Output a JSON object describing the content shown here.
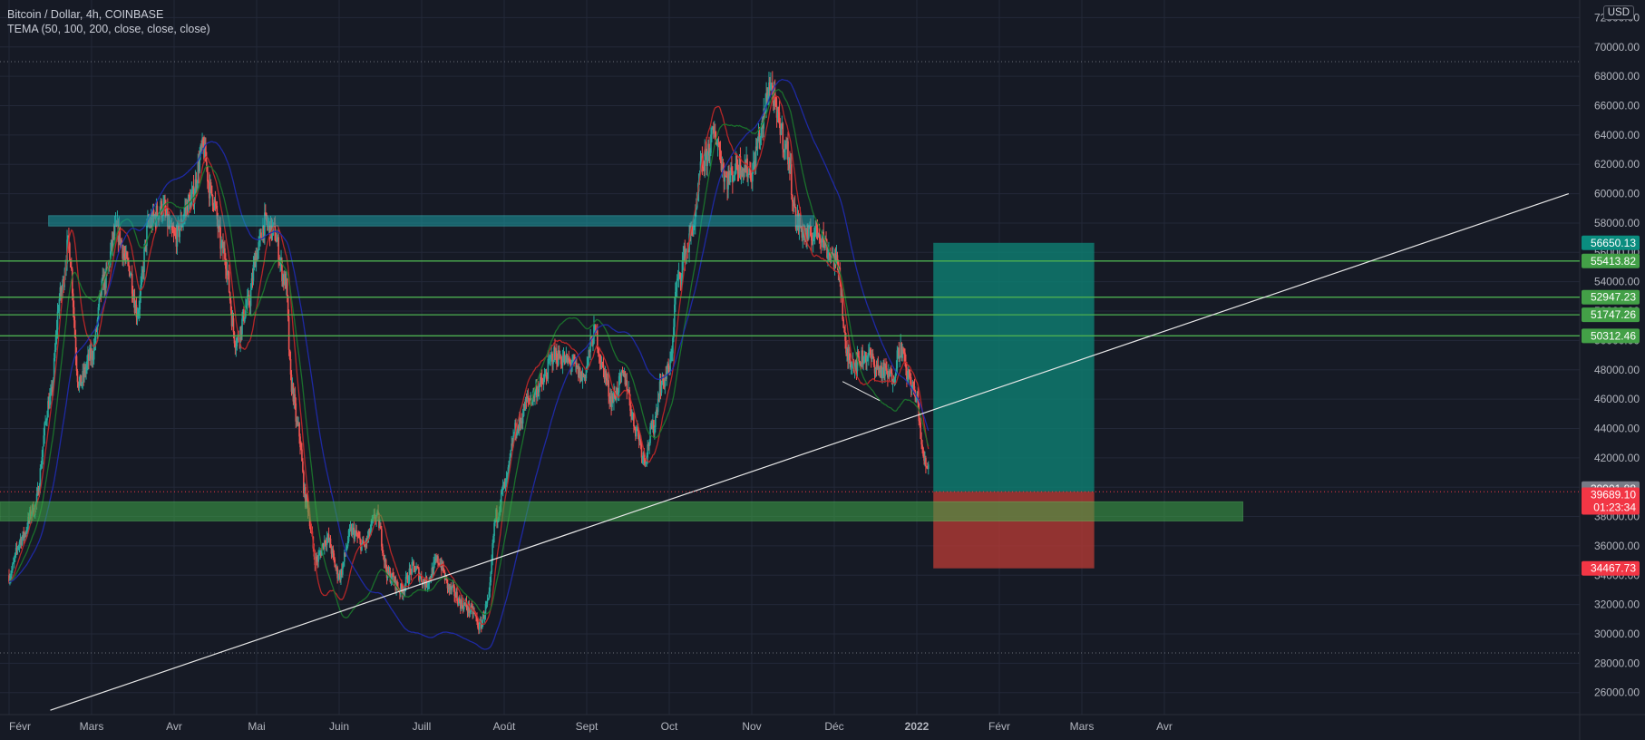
{
  "header": {
    "symbol_line": "Bitcoin / Dollar, 4h, COINBASE",
    "indicator_line": "TEMA (50, 100, 200, close, close, close)"
  },
  "currency_label": "USD",
  "colors": {
    "background": "#161a25",
    "grid": "#232838",
    "up_candle": "#26a69a",
    "down_candle": "#ef5350",
    "tema_50": "#c62828",
    "tema_100": "#1b7a2c",
    "tema_200": "#1f2bb0",
    "level_line": "#4caf50",
    "level_label": "#43a047",
    "target_zone": "#0e7a6f",
    "stop_zone": "#b23a34",
    "resistance_box": "#1aa0a6",
    "support_box": "#3fa84a",
    "trendline": "#e8e8e8",
    "price_label_gray": "#787b86",
    "price_label_red": "#f23645"
  },
  "chart_data": {
    "type": "candlestick",
    "title": "Bitcoin / Dollar, 4h, COINBASE",
    "ylim": [
      24500,
      73200
    ],
    "y_ticks": [
      26000,
      28000,
      30000,
      32000,
      34000,
      36000,
      38000,
      40000,
      42000,
      44000,
      46000,
      48000,
      50000,
      52000,
      54000,
      56000,
      58000,
      60000,
      62000,
      64000,
      66000,
      68000,
      70000,
      72000
    ],
    "y_tick_labels": [
      "26000.00",
      "28000.00",
      "30000.00",
      "32000.00",
      "34000.00",
      "36000.00",
      "38000.00",
      "40000.00",
      "42000.00",
      "44000.00",
      "46000.00",
      "48000.00",
      "50000.00",
      "52000.00",
      "54000.00",
      "56000.00",
      "58000.00",
      "60000.00",
      "62000.00",
      "64000.00",
      "66000.00",
      "68000.00",
      "70000.00",
      "72000.00"
    ],
    "x_month_labels": [
      "Févr",
      "Mars",
      "Avr",
      "Mai",
      "Juin",
      "Juill",
      "Août",
      "Sept",
      "Oct",
      "Nov",
      "Déc",
      "2022",
      "Févr",
      "Mars",
      "Avr"
    ],
    "x_month_index": [
      0,
      1,
      2,
      3,
      4,
      5,
      6,
      7,
      8,
      9,
      10,
      11,
      12,
      13,
      14
    ],
    "price_path": [
      [
        0.0,
        34000
      ],
      [
        0.15,
        36500
      ],
      [
        0.3,
        38500
      ],
      [
        0.5,
        46000
      ],
      [
        0.62,
        53000
      ],
      [
        0.72,
        56500
      ],
      [
        0.85,
        47000
      ],
      [
        1.0,
        49000
      ],
      [
        1.15,
        54000
      ],
      [
        1.3,
        57500
      ],
      [
        1.45,
        55000
      ],
      [
        1.55,
        52000
      ],
      [
        1.7,
        58000
      ],
      [
        1.85,
        59000
      ],
      [
        2.0,
        57000
      ],
      [
        2.2,
        59500
      ],
      [
        2.35,
        63000
      ],
      [
        2.45,
        60000
      ],
      [
        2.6,
        56000
      ],
      [
        2.75,
        50000
      ],
      [
        2.9,
        52500
      ],
      [
        3.0,
        56000
      ],
      [
        3.1,
        58000
      ],
      [
        3.2,
        57500
      ],
      [
        3.35,
        54000
      ],
      [
        3.42,
        47000
      ],
      [
        3.5,
        44000
      ],
      [
        3.6,
        39000
      ],
      [
        3.72,
        35000
      ],
      [
        3.85,
        36500
      ],
      [
        4.0,
        34000
      ],
      [
        4.15,
        37000
      ],
      [
        4.3,
        36000
      ],
      [
        4.45,
        38000
      ],
      [
        4.6,
        34000
      ],
      [
        4.75,
        33000
      ],
      [
        4.9,
        34500
      ],
      [
        5.05,
        33500
      ],
      [
        5.2,
        35000
      ],
      [
        5.35,
        33000
      ],
      [
        5.5,
        32000
      ],
      [
        5.62,
        31500
      ],
      [
        5.7,
        30500
      ],
      [
        5.8,
        32000
      ],
      [
        5.9,
        38000
      ],
      [
        6.0,
        40000
      ],
      [
        6.15,
        44000
      ],
      [
        6.3,
        46000
      ],
      [
        6.45,
        47000
      ],
      [
        6.6,
        49000
      ],
      [
        6.8,
        48500
      ],
      [
        6.95,
        47500
      ],
      [
        7.1,
        50500
      ],
      [
        7.2,
        48000
      ],
      [
        7.3,
        46000
      ],
      [
        7.45,
        47500
      ],
      [
        7.6,
        44000
      ],
      [
        7.7,
        42000
      ],
      [
        7.8,
        44000
      ],
      [
        7.9,
        47000
      ],
      [
        8.0,
        48000
      ],
      [
        8.1,
        54000
      ],
      [
        8.2,
        56000
      ],
      [
        8.3,
        58000
      ],
      [
        8.4,
        62000
      ],
      [
        8.55,
        64000
      ],
      [
        8.7,
        61000
      ],
      [
        8.85,
        62000
      ],
      [
        9.0,
        61500
      ],
      [
        9.1,
        64000
      ],
      [
        9.22,
        67500
      ],
      [
        9.32,
        65000
      ],
      [
        9.42,
        63000
      ],
      [
        9.55,
        58000
      ],
      [
        9.68,
        57000
      ],
      [
        9.8,
        57500
      ],
      [
        9.95,
        56000
      ],
      [
        10.05,
        55000
      ],
      [
        10.15,
        49000
      ],
      [
        10.25,
        48500
      ],
      [
        10.4,
        49000
      ],
      [
        10.55,
        48000
      ],
      [
        10.7,
        47500
      ],
      [
        10.8,
        49500
      ],
      [
        10.9,
        47500
      ],
      [
        11.0,
        46000
      ],
      [
        11.08,
        42000
      ],
      [
        11.12,
        41500
      ],
      [
        11.15,
        41800
      ]
    ],
    "horizontal_levels": [
      {
        "price": 55413.82,
        "label": "55413.82"
      },
      {
        "price": 52947.23,
        "label": "52947.23"
      },
      {
        "price": 51747.26,
        "label": "51747.26"
      },
      {
        "price": 50312.46,
        "label": "50312.46"
      }
    ],
    "position_tool": {
      "target_price": 56650.13,
      "target_label": "56650.13",
      "entry_price": 39689.1,
      "stop_price": 34467.73,
      "stop_label": "34467.73",
      "x_start": 11.2,
      "x_end": 13.15
    },
    "last_price": {
      "value": 39901.88,
      "label": "39901.88"
    },
    "current_price": {
      "value": 39689.1,
      "label": "39689.10",
      "countdown": "01:23:34"
    },
    "resistance_box": {
      "y_top": 58500,
      "y_bottom": 57800,
      "x_start": 0.48,
      "x_end": 9.75
    },
    "support_box": {
      "y_top": 39000,
      "y_bottom": 37700,
      "x_start": -0.2,
      "x_end": 14.95
    },
    "trendline": {
      "p1": [
        0.5,
        24800
      ],
      "p2": [
        18.9,
        60000
      ]
    },
    "dotted_levels": [
      69000,
      28700
    ],
    "triangle_line": {
      "p1": [
        10.1,
        47200
      ],
      "p2": [
        10.55,
        45900
      ]
    }
  }
}
